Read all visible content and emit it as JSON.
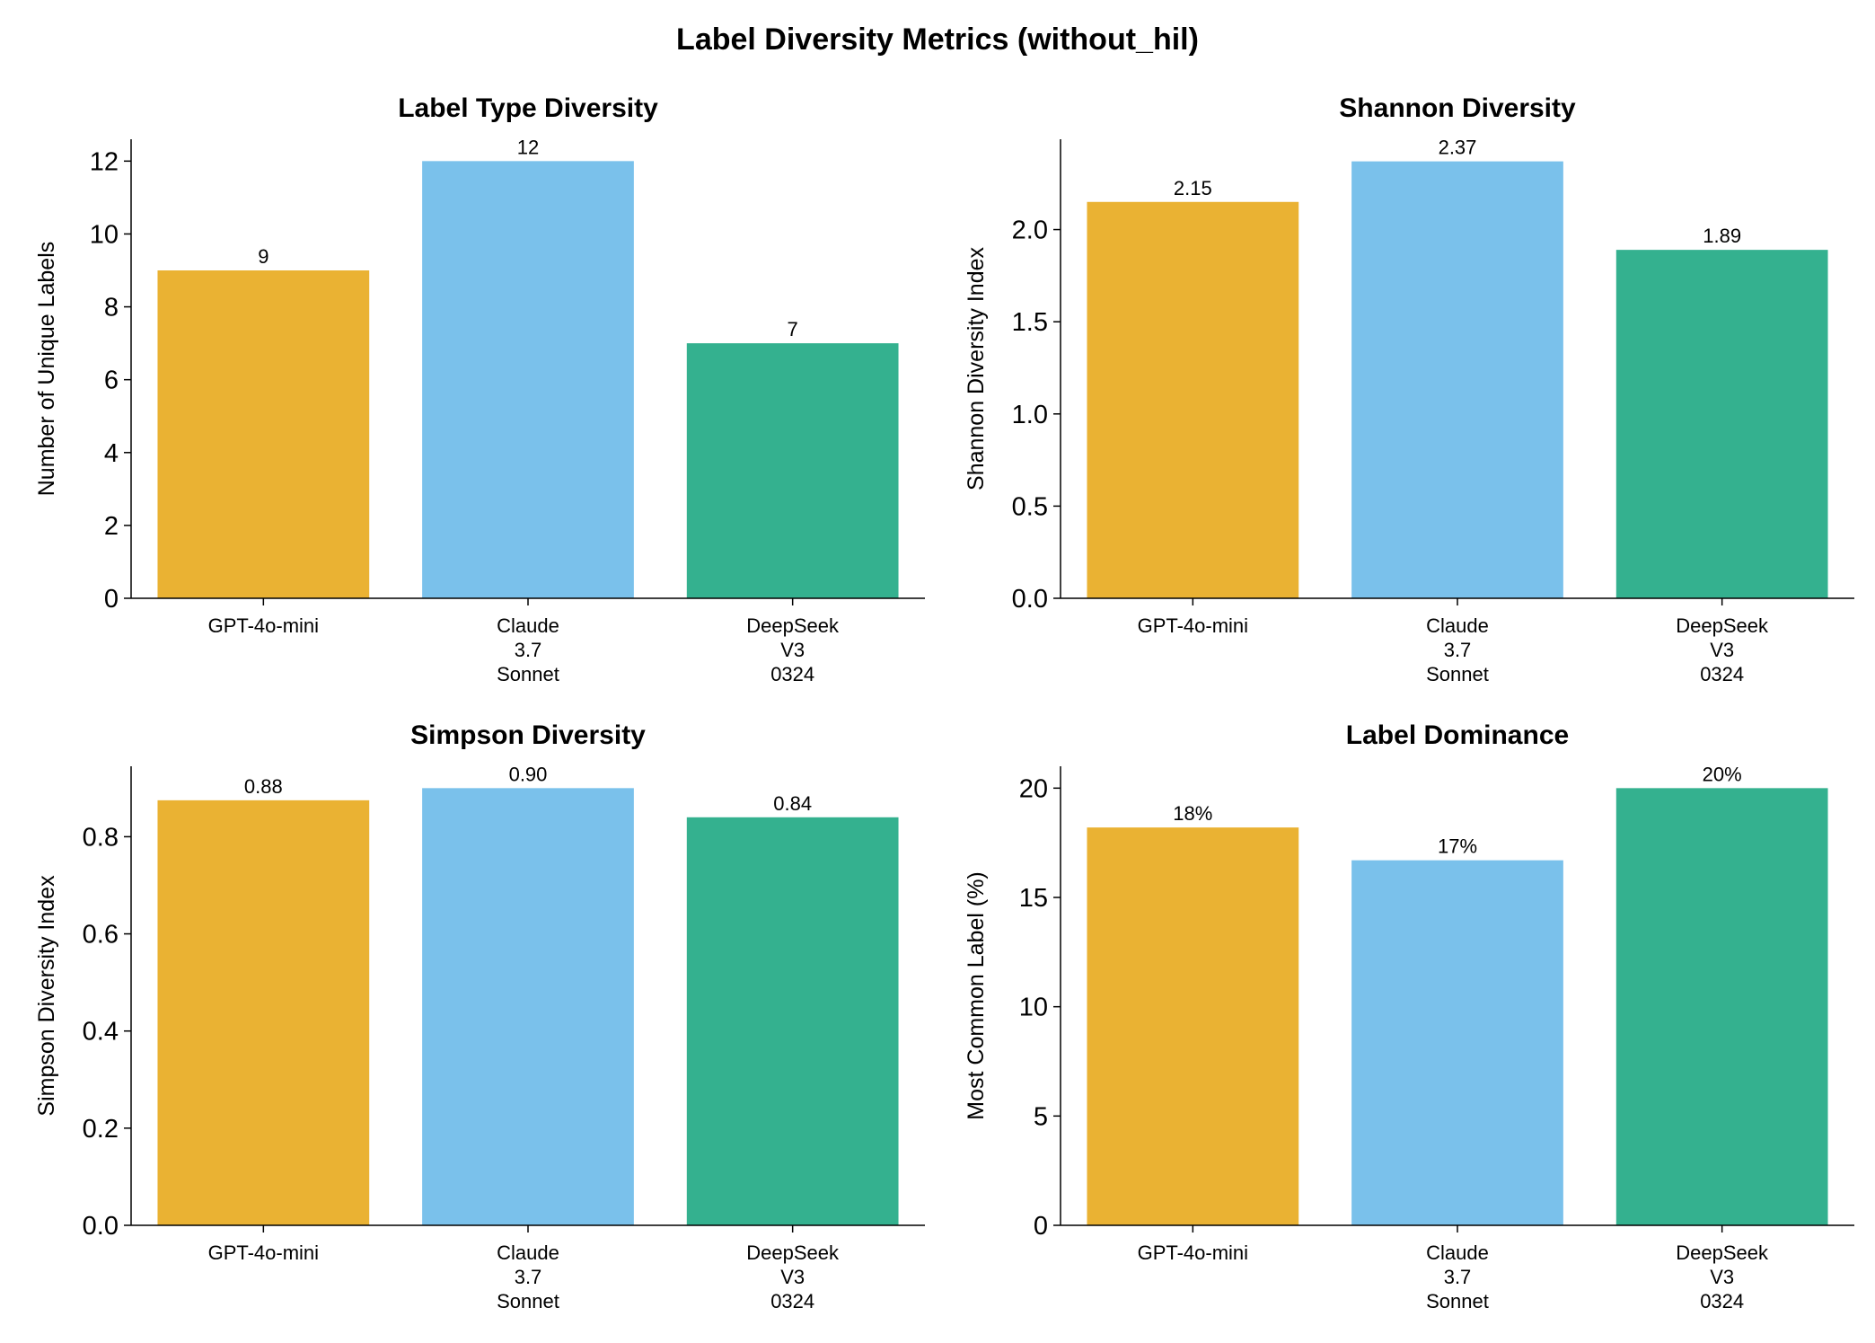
{
  "figure": {
    "title": "Label Diversity Metrics (without_hil)"
  },
  "colors": {
    "GPT-4o-mini": "#EAB233",
    "Claude 3.7 Sonnet": "#7AC1EB",
    "DeepSeek V3 0324": "#34B18F"
  },
  "chart_data": [
    {
      "type": "bar",
      "title": "Label Type Diversity",
      "xlabel": "",
      "ylabel": "Number of Unique Labels",
      "categories": [
        "GPT-4o-mini",
        "Claude 3.7 Sonnet",
        "DeepSeek V3 0324"
      ],
      "category_lines": [
        [
          "GPT-4o-mini"
        ],
        [
          "Claude",
          "3.7",
          "Sonnet"
        ],
        [
          "DeepSeek",
          "V3",
          "0324"
        ]
      ],
      "values": [
        9,
        12,
        7
      ],
      "value_labels": [
        "9",
        "12",
        "7"
      ],
      "ylim": [
        0,
        12.6
      ],
      "yticks": [
        0,
        2,
        4,
        6,
        8,
        10,
        12
      ],
      "ytick_labels": [
        "0",
        "2",
        "4",
        "6",
        "8",
        "10",
        "12"
      ],
      "grid": false
    },
    {
      "type": "bar",
      "title": "Shannon Diversity",
      "xlabel": "",
      "ylabel": "Shannon Diversity Index",
      "categories": [
        "GPT-4o-mini",
        "Claude 3.7 Sonnet",
        "DeepSeek V3 0324"
      ],
      "category_lines": [
        [
          "GPT-4o-mini"
        ],
        [
          "Claude",
          "3.7",
          "Sonnet"
        ],
        [
          "DeepSeek",
          "V3",
          "0324"
        ]
      ],
      "values": [
        2.15,
        2.37,
        1.89
      ],
      "value_labels": [
        "2.15",
        "2.37",
        "1.89"
      ],
      "ylim": [
        0,
        2.49
      ],
      "yticks": [
        0,
        0.5,
        1.0,
        1.5,
        2.0
      ],
      "ytick_labels": [
        "0.0",
        "0.5",
        "1.0",
        "1.5",
        "2.0"
      ],
      "grid": false
    },
    {
      "type": "bar",
      "title": "Simpson Diversity",
      "xlabel": "",
      "ylabel": "Simpson Diversity Index",
      "categories": [
        "GPT-4o-mini",
        "Claude 3.7 Sonnet",
        "DeepSeek V3 0324"
      ],
      "category_lines": [
        [
          "GPT-4o-mini"
        ],
        [
          "Claude",
          "3.7",
          "Sonnet"
        ],
        [
          "DeepSeek",
          "V3",
          "0324"
        ]
      ],
      "values": [
        0.875,
        0.9,
        0.84
      ],
      "value_labels": [
        "0.88",
        "0.90",
        "0.84"
      ],
      "ylim": [
        0,
        0.945
      ],
      "yticks": [
        0,
        0.2,
        0.4,
        0.6,
        0.8
      ],
      "ytick_labels": [
        "0.0",
        "0.2",
        "0.4",
        "0.6",
        "0.8"
      ],
      "grid": false
    },
    {
      "type": "bar",
      "title": "Label Dominance",
      "xlabel": "",
      "ylabel": "Most Common Label (%)",
      "categories": [
        "GPT-4o-mini",
        "Claude 3.7 Sonnet",
        "DeepSeek V3 0324"
      ],
      "category_lines": [
        [
          "GPT-4o-mini"
        ],
        [
          "Claude",
          "3.7",
          "Sonnet"
        ],
        [
          "DeepSeek",
          "V3",
          "0324"
        ]
      ],
      "values": [
        18.2,
        16.7,
        20.0
      ],
      "value_labels": [
        "18%",
        "17%",
        "20%"
      ],
      "ylim": [
        0,
        21
      ],
      "yticks": [
        0,
        5,
        10,
        15,
        20
      ],
      "ytick_labels": [
        "0",
        "5",
        "10",
        "15",
        "20"
      ],
      "grid": false
    }
  ]
}
